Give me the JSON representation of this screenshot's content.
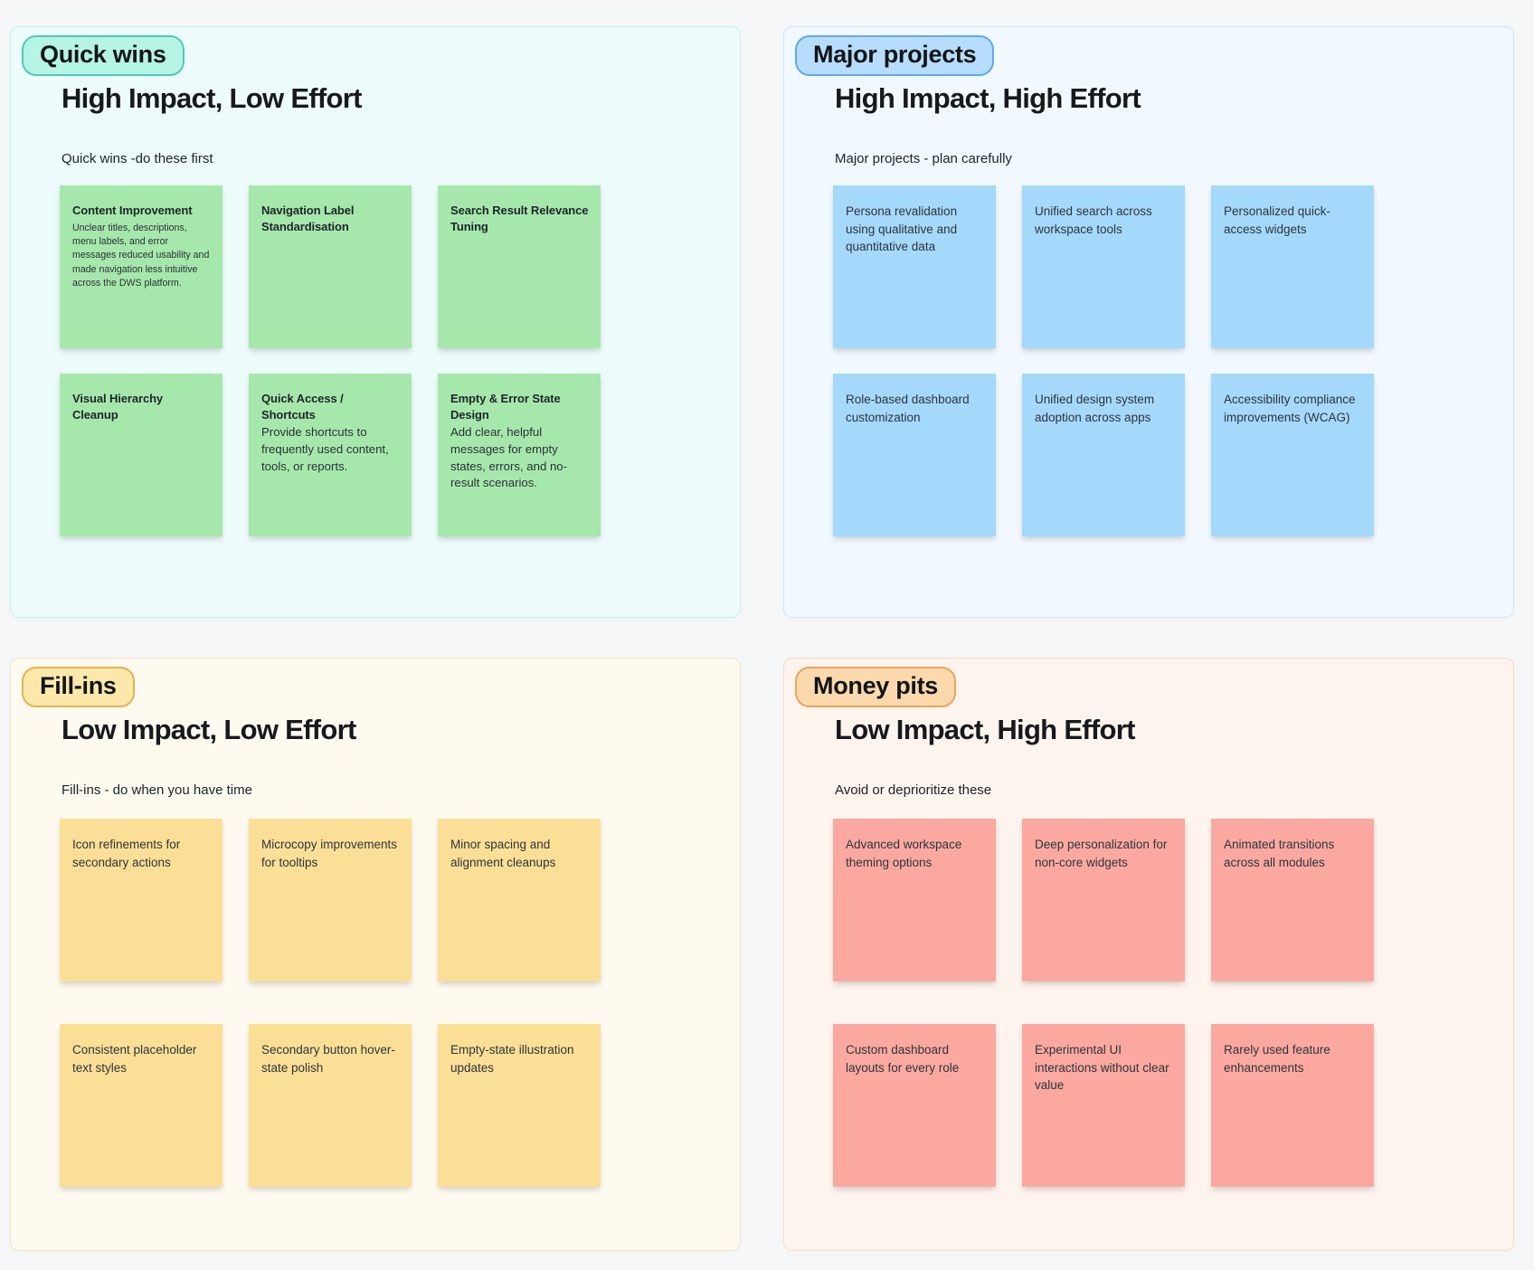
{
  "page": {
    "bg": "#f5f6f7"
  },
  "quadrants": [
    {
      "name": "Quick wins",
      "badge": "Quick wins",
      "title": "High Impact, Low Effort",
      "subtitle": "Quick wins -do these first",
      "colors": {
        "panel_bg": "#edfbfb",
        "panel_border": "#c7eef0",
        "badge_bg": "#b6f4e3",
        "badge_border": "#52c9b4",
        "sticky": "#a6e8ac"
      },
      "stickies": [
        {
          "title": "Content Improvement",
          "body": "Unclear titles, descriptions, menu labels, and error messages reduced usability and made navigation less intuitive across the DWS platform."
        },
        {
          "title": "Navigation Label Standardisation",
          "body": ""
        },
        {
          "title": "Search Result Relevance Tuning",
          "body": ""
        },
        {
          "title": "Visual Hierarchy Cleanup",
          "body": ""
        },
        {
          "title": "Quick Access / Shortcuts",
          "body": "Provide shortcuts to frequently used content, tools, or reports."
        },
        {
          "title": "Empty & Error State Design",
          "body": "Add clear, helpful messages for empty states, errors, and no-result scenarios."
        }
      ]
    },
    {
      "name": "Major projects",
      "badge": "Major projects",
      "title": "High Impact, High Effort",
      "subtitle": "Major projects - plan carefully",
      "colors": {
        "panel_bg": "#f1f9fe",
        "panel_border": "#cde5f8",
        "badge_bg": "#b6ddfc",
        "badge_border": "#62a9e9",
        "sticky": "#a4d9fb"
      },
      "stickies": [
        {
          "text": "Persona revalidation using qualitative and quantitative data"
        },
        {
          "text": "Unified search across workspace tools"
        },
        {
          "text": "Personalized quick-access widgets"
        },
        {
          "text": "Role-based dashboard customization"
        },
        {
          "text": "Unified design system adoption across apps"
        },
        {
          "text": "Accessibility compliance improvements (WCAG)"
        }
      ]
    },
    {
      "name": "Fill-ins",
      "badge": "Fill-ins",
      "title": "Low Impact, Low Effort",
      "subtitle": "Fill-ins - do when you have time",
      "colors": {
        "panel_bg": "#fefaf0",
        "panel_border": "#f3e3bd",
        "badge_bg": "#fde8ab",
        "badge_border": "#e4b254",
        "sticky": "#fbdf96"
      },
      "stickies": [
        {
          "text": "Icon refinements for secondary actions"
        },
        {
          "text": "Microcopy improvements for tooltips"
        },
        {
          "text": "Minor spacing and alignment cleanups"
        },
        {
          "text": "Consistent placeholder text styles"
        },
        {
          "text": "Secondary button hover-state polish"
        },
        {
          "text": "Empty-state illustration updates"
        }
      ]
    },
    {
      "name": "Money pits",
      "badge": "Money pits",
      "title": "Low Impact, High Effort",
      "subtitle": "Avoid or deprioritize these",
      "colors": {
        "panel_bg": "#fdf4ed",
        "panel_border": "#f6dcc2",
        "badge_bg": "#fcd9ad",
        "badge_border": "#e9a55c",
        "sticky": "#fba9a0"
      },
      "stickies": [
        {
          "text": "Advanced workspace theming options"
        },
        {
          "text": "Deep personalization for non-core widgets"
        },
        {
          "text": "Animated transitions across all modules"
        },
        {
          "text": "Custom dashboard layouts for every role"
        },
        {
          "text": "Experimental UI interactions without clear value"
        },
        {
          "text": "Rarely used feature enhancements"
        }
      ]
    }
  ]
}
